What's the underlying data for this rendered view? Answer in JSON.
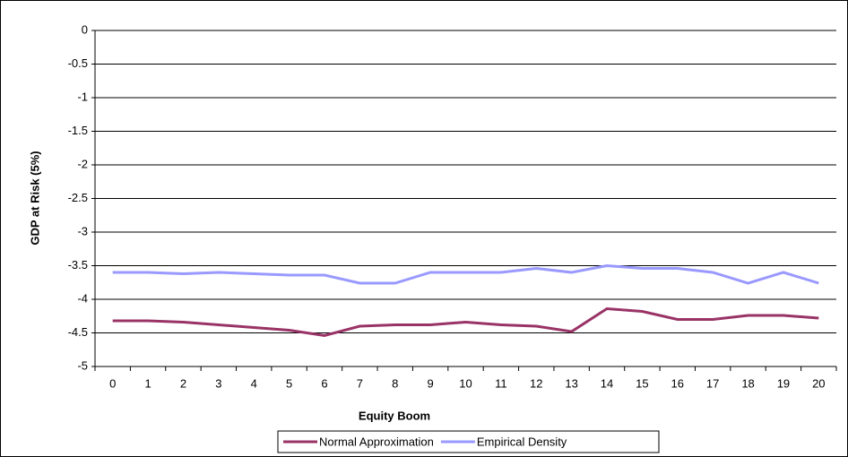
{
  "chart_data": {
    "type": "line",
    "x_label": "Equity Boom",
    "y_label": "GDP at Risk (5%)",
    "categories": [
      "0",
      "1",
      "2",
      "3",
      "4",
      "5",
      "6",
      "7",
      "8",
      "9",
      "10",
      "11",
      "12",
      "13",
      "14",
      "15",
      "16",
      "17",
      "18",
      "19",
      "20"
    ],
    "series": [
      {
        "name": "Normal Approximation",
        "color": "#993366",
        "values": [
          -4.32,
          -4.32,
          -4.34,
          -4.38,
          -4.42,
          -4.46,
          -4.54,
          -4.4,
          -4.38,
          -4.38,
          -4.34,
          -4.38,
          -4.4,
          -4.48,
          -4.14,
          -4.18,
          -4.3,
          -4.3,
          -4.24,
          -4.24,
          -4.28
        ]
      },
      {
        "name": "Empirical Density",
        "color": "#9999ff",
        "values": [
          -3.6,
          -3.6,
          -3.62,
          -3.6,
          -3.62,
          -3.64,
          -3.64,
          -3.76,
          -3.76,
          -3.6,
          -3.6,
          -3.6,
          -3.54,
          -3.6,
          -3.5,
          -3.54,
          -3.54,
          -3.6,
          -3.76,
          -3.6,
          -3.76
        ]
      }
    ],
    "ylim": [
      -5,
      0
    ],
    "yticks": [
      0,
      -0.5,
      -1,
      -1.5,
      -2,
      -2.5,
      -3,
      -3.5,
      -4,
      -4.5,
      -5
    ],
    "grid": true,
    "legend": "bottom"
  }
}
